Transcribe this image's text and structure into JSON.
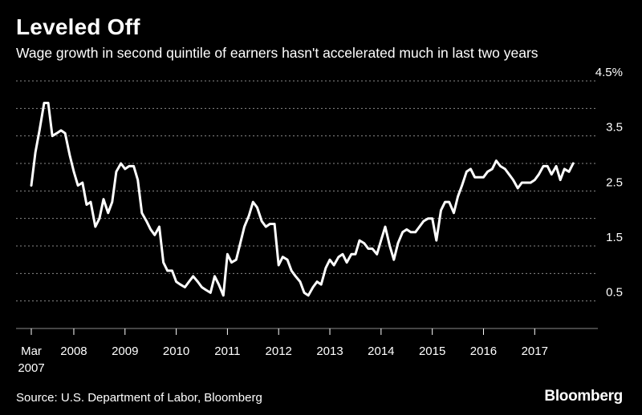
{
  "header": {
    "title": "Leveled Off",
    "subtitle": "Wage growth in second quintile of earners hasn't accelerated much in last two years"
  },
  "footer": {
    "source": "Source: U.S. Department of Labor, Bloomberg",
    "brand": "Bloomberg"
  },
  "colors": {
    "background": "#000000",
    "line": "#ffffff",
    "grid": "#8a8a8a",
    "text": "#ffffff"
  },
  "chart_data": {
    "type": "line",
    "title": "Leveled Off",
    "subtitle": "Wage growth in second quintile of earners hasn't accelerated much in last two years",
    "xlabel": "",
    "ylabel": "",
    "ylim": [
      0,
      4.5
    ],
    "xlim": [
      2007.17,
      2017.92
    ],
    "grid": true,
    "legend": "none",
    "y_ticks": [
      {
        "value": 4.5,
        "label": "4.5%"
      },
      {
        "value": 3.5,
        "label": "3.5"
      },
      {
        "value": 2.5,
        "label": "2.5"
      },
      {
        "value": 1.5,
        "label": "1.5"
      },
      {
        "value": 0.5,
        "label": "0.5"
      }
    ],
    "y_grid_values": [
      0.5,
      1.0,
      1.5,
      2.0,
      2.5,
      3.0,
      3.5,
      4.0,
      4.5
    ],
    "x_ticks": [
      {
        "value": 2007.17,
        "label": "Mar",
        "sublabel": "2007"
      },
      {
        "value": 2008,
        "label": "2008"
      },
      {
        "value": 2009,
        "label": "2009"
      },
      {
        "value": 2010,
        "label": "2010"
      },
      {
        "value": 2011,
        "label": "2011"
      },
      {
        "value": 2012,
        "label": "2012"
      },
      {
        "value": 2013,
        "label": "2013"
      },
      {
        "value": 2014,
        "label": "2014"
      },
      {
        "value": 2015,
        "label": "2015"
      },
      {
        "value": 2016,
        "label": "2016"
      },
      {
        "value": 2017,
        "label": "2017"
      }
    ],
    "series": [
      {
        "x": [
          2007.17,
          2007.25,
          2007.33,
          2007.42,
          2007.5,
          2007.58,
          2007.67,
          2007.75,
          2007.83,
          2007.92,
          2008.0,
          2008.08,
          2008.17,
          2008.25,
          2008.33,
          2008.42,
          2008.5,
          2008.58,
          2008.67,
          2008.75,
          2008.83,
          2008.92,
          2009.0,
          2009.08,
          2009.17,
          2009.25,
          2009.33,
          2009.42,
          2009.5,
          2009.58,
          2009.67,
          2009.75,
          2009.83,
          2009.92,
          2010.0,
          2010.08,
          2010.17,
          2010.25,
          2010.33,
          2010.42,
          2010.5,
          2010.58,
          2010.67,
          2010.75,
          2010.83,
          2010.92,
          2011.0,
          2011.08,
          2011.17,
          2011.25,
          2011.33,
          2011.42,
          2011.5,
          2011.58,
          2011.67,
          2011.75,
          2011.83,
          2011.92,
          2012.0,
          2012.08,
          2012.17,
          2012.25,
          2012.33,
          2012.42,
          2012.5,
          2012.58,
          2012.67,
          2012.75,
          2012.83,
          2012.92,
          2013.0,
          2013.08,
          2013.17,
          2013.25,
          2013.33,
          2013.42,
          2013.5,
          2013.58,
          2013.67,
          2013.75,
          2013.83,
          2013.92,
          2014.0,
          2014.08,
          2014.17,
          2014.25,
          2014.33,
          2014.42,
          2014.5,
          2014.58,
          2014.67,
          2014.75,
          2014.83,
          2014.92,
          2015.0,
          2015.08,
          2015.17,
          2015.25,
          2015.33,
          2015.42,
          2015.5,
          2015.58,
          2015.67,
          2015.75,
          2015.83,
          2015.92,
          2016.0,
          2016.08,
          2016.17,
          2016.25,
          2016.33,
          2016.42,
          2016.5,
          2016.58,
          2016.67,
          2016.75,
          2016.83,
          2016.92,
          2017.0,
          2017.08,
          2017.17,
          2017.25,
          2017.33,
          2017.42,
          2017.5,
          2017.58,
          2017.67,
          2017.75
        ],
        "y": [
          2.6,
          3.2,
          3.6,
          4.1,
          4.1,
          3.5,
          3.55,
          3.6,
          3.55,
          3.15,
          2.85,
          2.6,
          2.65,
          2.25,
          2.3,
          1.85,
          2.0,
          2.35,
          2.1,
          2.3,
          2.85,
          3.0,
          2.9,
          2.95,
          2.95,
          2.7,
          2.1,
          1.95,
          1.8,
          1.7,
          1.85,
          1.2,
          1.05,
          1.05,
          0.85,
          0.8,
          0.75,
          0.85,
          0.95,
          0.85,
          0.75,
          0.7,
          0.65,
          0.95,
          0.8,
          0.6,
          1.35,
          1.2,
          1.25,
          1.55,
          1.85,
          2.05,
          2.3,
          2.2,
          1.95,
          1.85,
          1.9,
          1.9,
          1.15,
          1.3,
          1.25,
          1.05,
          0.95,
          0.85,
          0.65,
          0.6,
          0.75,
          0.85,
          0.8,
          1.1,
          1.25,
          1.15,
          1.3,
          1.35,
          1.2,
          1.35,
          1.35,
          1.6,
          1.55,
          1.45,
          1.45,
          1.35,
          1.6,
          1.85,
          1.5,
          1.25,
          1.55,
          1.75,
          1.8,
          1.75,
          1.75,
          1.85,
          1.95,
          2.0,
          2.0,
          1.6,
          2.15,
          2.3,
          2.3,
          2.1,
          2.4,
          2.6,
          2.85,
          2.9,
          2.75,
          2.75,
          2.75,
          2.85,
          2.9,
          3.05,
          2.95,
          2.9,
          2.8,
          2.7,
          2.55,
          2.65,
          2.65,
          2.65,
          2.7,
          2.8,
          2.95,
          2.95,
          2.8,
          2.95,
          2.7,
          2.9,
          2.85,
          3.0
        ]
      }
    ]
  }
}
